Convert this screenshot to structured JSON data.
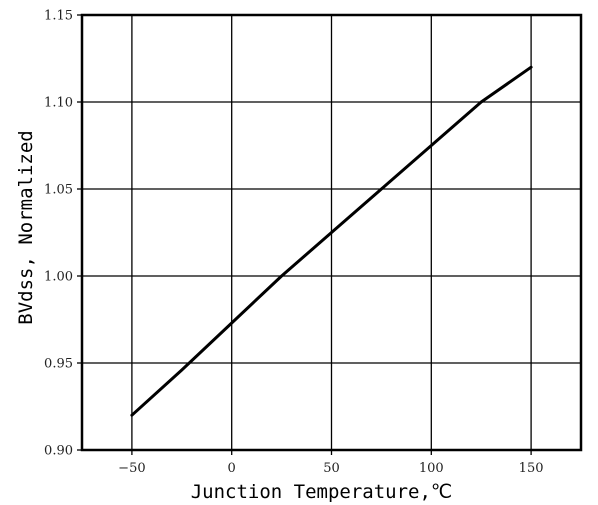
{
  "chart_data": {
    "type": "line",
    "xlabel": "Junction Temperature,℃",
    "ylabel": "BVdss, Normalized",
    "xlim": [
      -75,
      175
    ],
    "ylim": [
      0.9,
      1.15
    ],
    "xticks": [
      -50,
      0,
      50,
      100,
      150
    ],
    "yticks": [
      0.9,
      0.95,
      1.0,
      1.05,
      1.1,
      1.15
    ],
    "xtick_labels": [
      "−50",
      "0",
      "50",
      "100",
      "150"
    ],
    "ytick_labels": [
      "0.90",
      "0.95",
      "1.00",
      "1.05",
      "1.10",
      "1.15"
    ],
    "grid": true,
    "series": [
      {
        "x": [
          -50,
          -25,
          0,
          25,
          50,
          75,
          100,
          125,
          150
        ],
        "y": [
          0.92,
          0.946,
          0.973,
          1.0,
          1.025,
          1.05,
          1.075,
          1.1,
          1.12
        ]
      }
    ],
    "colors": {
      "line": "#000000",
      "grid": "#000000",
      "frame": "#000000"
    }
  }
}
